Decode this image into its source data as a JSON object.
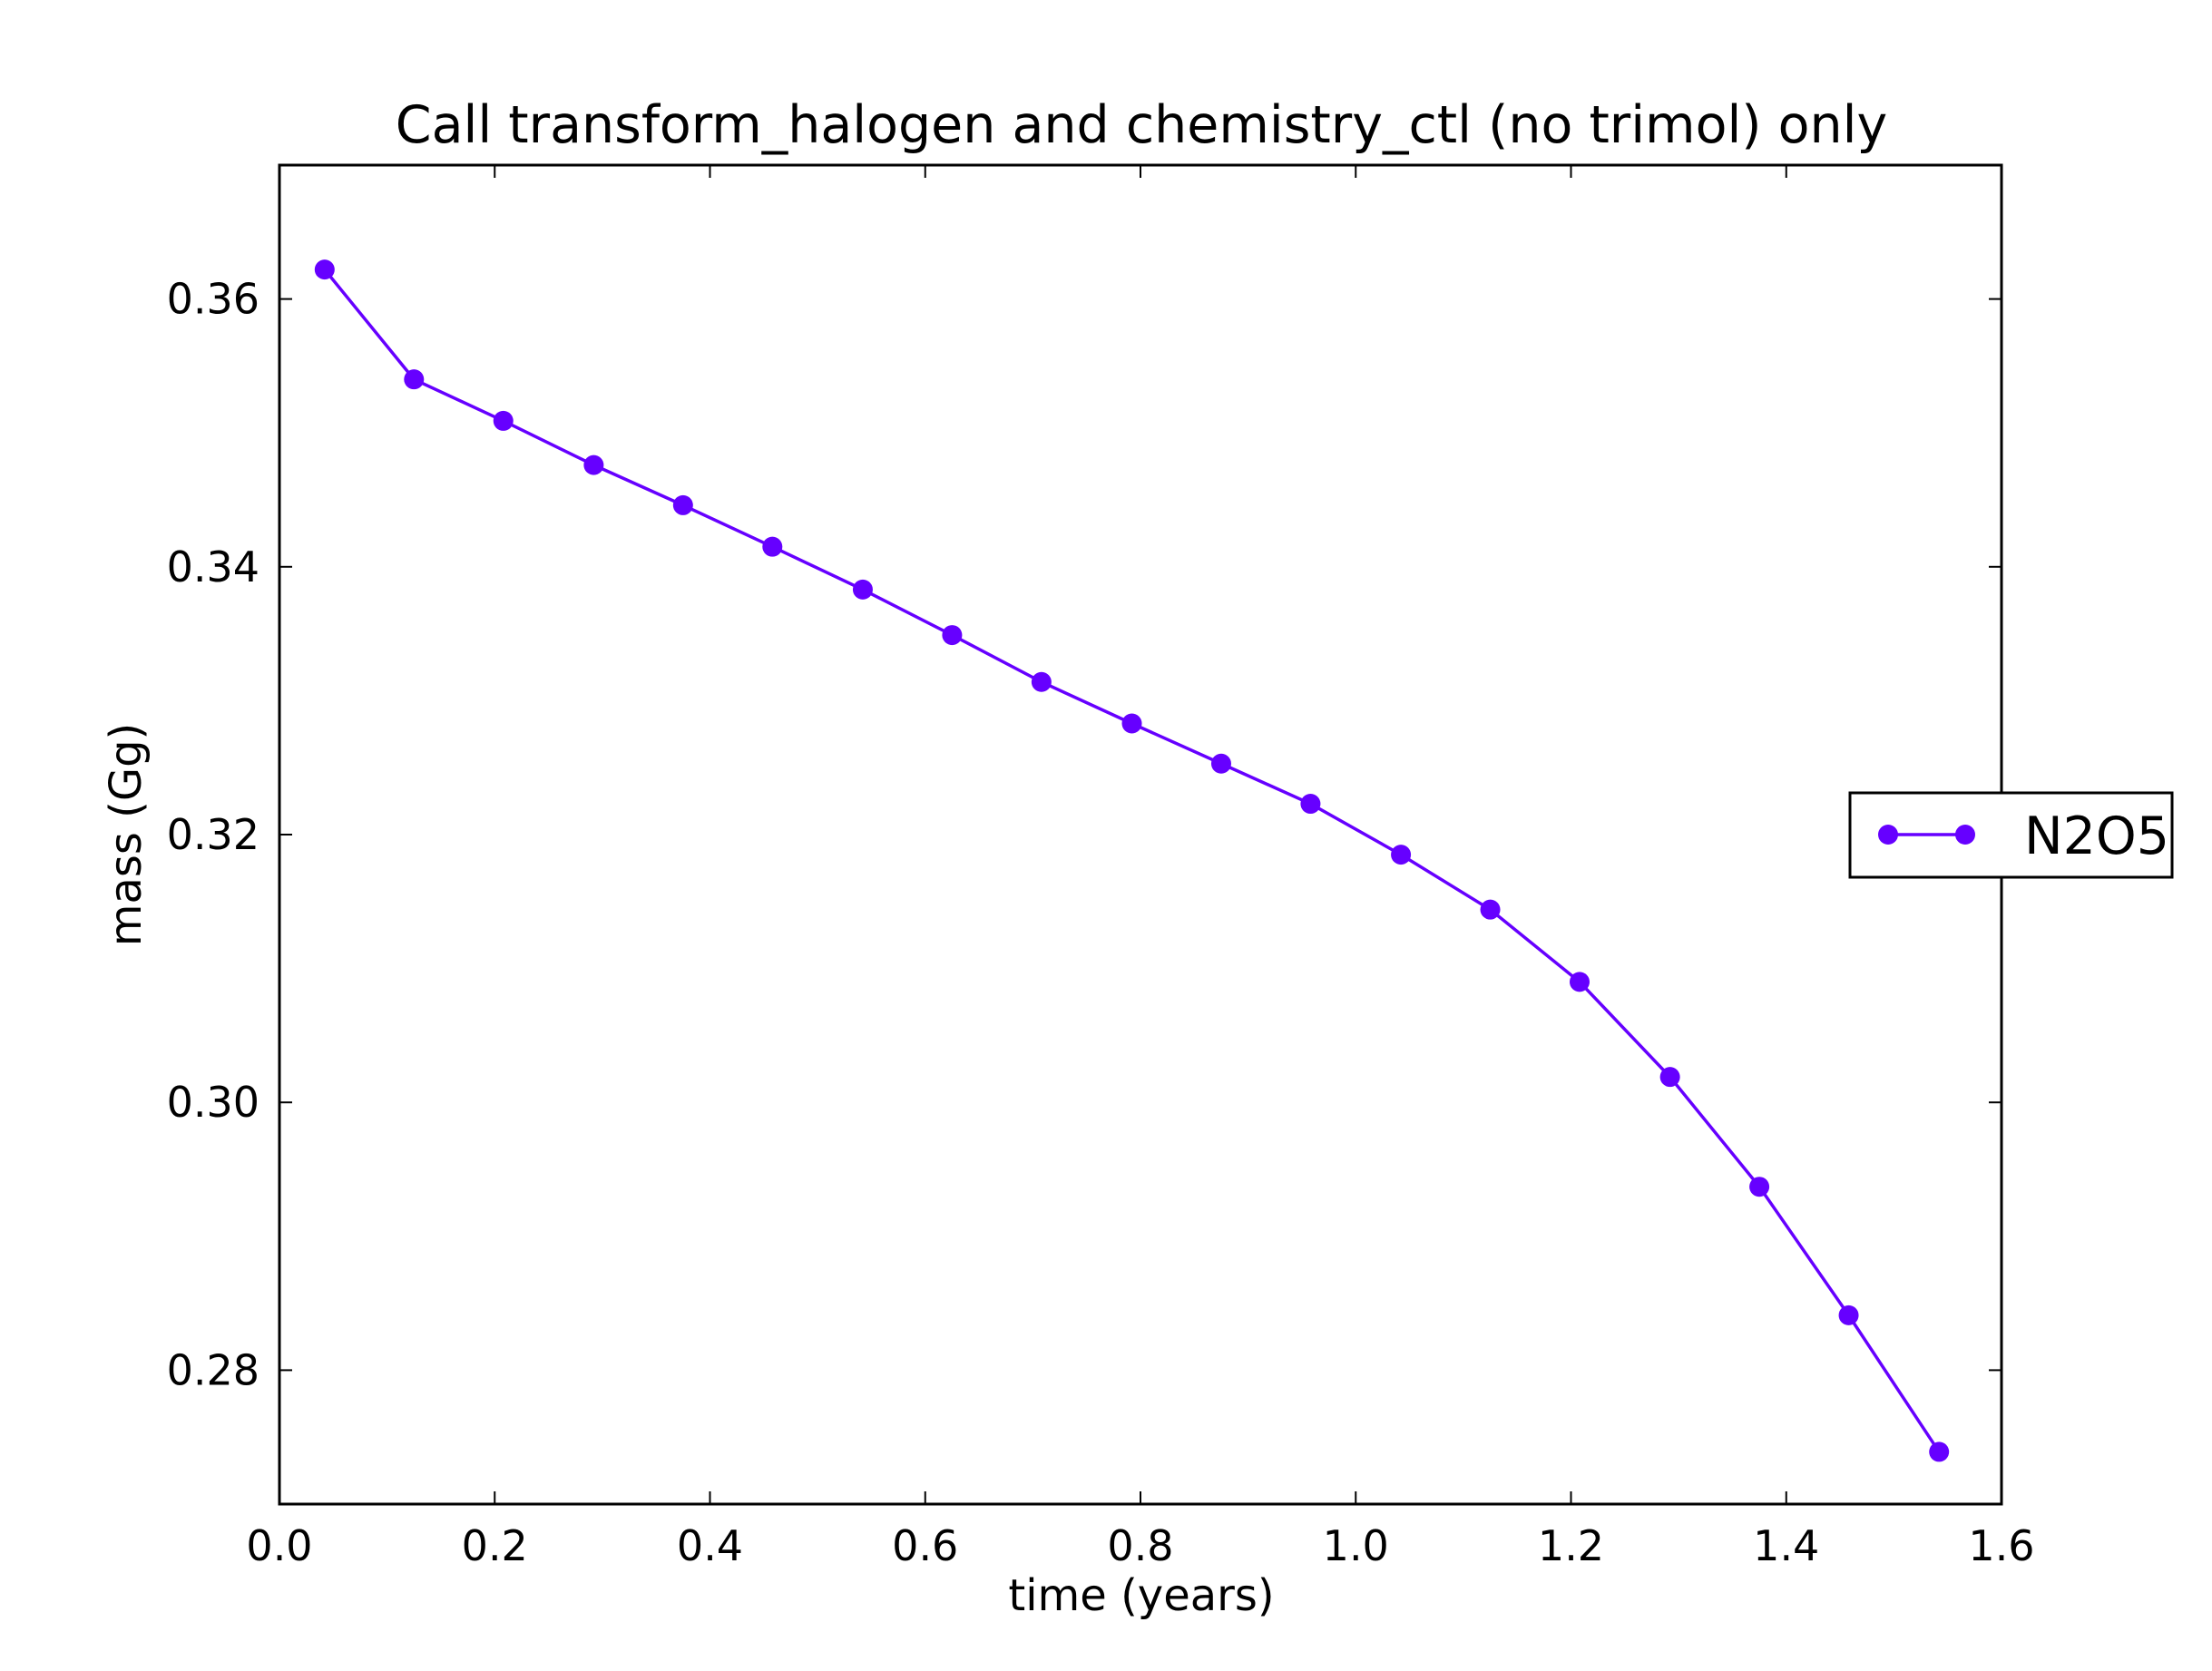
{
  "chart_data": {
    "type": "line",
    "title": "Call transform_halogen and chemistry_ctl (no trimol) only",
    "xlabel": "time (years)",
    "ylabel": "mass (Gg)",
    "xlim": [
      0.0,
      1.6
    ],
    "ylim": [
      0.27,
      0.37
    ],
    "xticks": [
      0.0,
      0.2,
      0.4,
      0.6,
      0.8,
      1.0,
      1.2,
      1.4,
      1.6
    ],
    "xtick_labels": [
      "0.0",
      "0.2",
      "0.4",
      "0.6",
      "0.8",
      "1.0",
      "1.2",
      "1.4",
      "1.6"
    ],
    "yticks": [
      0.28,
      0.3,
      0.32,
      0.34,
      0.36
    ],
    "ytick_labels": [
      "0.28",
      "0.30",
      "0.32",
      "0.34",
      "0.36"
    ],
    "grid": false,
    "legend_position": "right-outside",
    "series": [
      {
        "name": "N2O5",
        "color": "#6600ff",
        "marker": "circle",
        "x": [
          0.042,
          0.125,
          0.208,
          0.292,
          0.375,
          0.458,
          0.542,
          0.625,
          0.708,
          0.792,
          0.875,
          0.958,
          1.042,
          1.125,
          1.208,
          1.292,
          1.375,
          1.458,
          1.542
        ],
        "y": [
          0.3622,
          0.354,
          0.3509,
          0.3476,
          0.3446,
          0.3415,
          0.3383,
          0.3349,
          0.3314,
          0.3283,
          0.3253,
          0.3223,
          0.3185,
          0.3144,
          0.309,
          0.3019,
          0.2937,
          0.2841,
          0.2739
        ]
      }
    ]
  }
}
